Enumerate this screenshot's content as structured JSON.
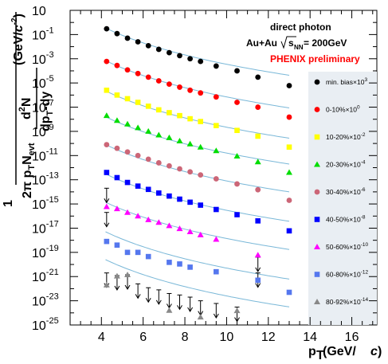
{
  "chart_data": {
    "type": "scatter",
    "xlim": [
      2.5,
      17.2
    ],
    "ylim_log10": [
      -25,
      1
    ],
    "y_scale": "log",
    "xlabel_main": "p",
    "xlabel_sub": "T",
    "xlabel_unit": "(GeV/",
    "xlabel_c": "c",
    "xlabel_close": ")",
    "ylabel": {
      "one": "1",
      "two_pi": "2π p",
      "t_sub": "T",
      "n_evt": "N",
      "evt_sub": "evt",
      "d2n": "d",
      "d2n_sup": "2",
      "d2n_n": "N",
      "dpt": "dp",
      "dpt_sub": "T",
      "dy": "-dy",
      "unit": "(GeV/",
      "unit_c": "c",
      "unit_close": ")",
      "unit_sup": "-2"
    },
    "x_ticks": [
      "4",
      "6",
      "8",
      "10",
      "12",
      "14",
      "16"
    ],
    "y_ticks": [
      {
        "base": "10",
        "exp": ""
      },
      {
        "base": "10",
        "exp": "-1"
      },
      {
        "base": "10",
        "exp": "-3"
      },
      {
        "base": "10",
        "exp": "-5"
      },
      {
        "base": "10",
        "exp": "-7"
      },
      {
        "base": "10",
        "exp": "-9"
      },
      {
        "base": "10",
        "exp": "-11"
      },
      {
        "base": "10",
        "exp": "-13"
      },
      {
        "base": "10",
        "exp": "-15"
      },
      {
        "base": "10",
        "exp": "-17"
      },
      {
        "base": "10",
        "exp": "-19"
      },
      {
        "base": "10",
        "exp": "-21"
      },
      {
        "base": "10",
        "exp": "-23"
      },
      {
        "base": "10",
        "exp": "-25"
      }
    ],
    "annotations": {
      "line1": "direct photon",
      "line2_a": "Au+Au ",
      "line2_s": "s",
      "line2_nn": "NN",
      "line2_b": " = 200GeV",
      "line3": "PHENIX preliminary"
    },
    "legend_placement": "right",
    "series": [
      {
        "name": "min. bias",
        "scale": "×10",
        "scale_exp": "3",
        "color": "#000000",
        "marker": "circle",
        "x": [
          4.25,
          4.75,
          5.25,
          5.75,
          6.25,
          6.75,
          7.25,
          7.75,
          8.25,
          8.75,
          9.5,
          10.5,
          11.5,
          13.0
        ],
        "y": [
          0.3,
          0.12,
          0.05,
          0.025,
          0.012,
          0.006,
          0.0032,
          0.0018,
          0.001,
          0.0006,
          0.00025,
          0.0001,
          3e-05,
          6e-06
        ],
        "fit": [
          4.2,
          13.0,
          0.35,
          -7.96
        ]
      },
      {
        "name": "0-10%",
        "scale": "×10",
        "scale_exp": "0",
        "color": "#ff0000",
        "marker": "circle",
        "x": [
          4.25,
          4.75,
          5.25,
          5.75,
          6.25,
          6.75,
          7.25,
          7.75,
          8.25,
          8.75,
          9.5,
          10.5,
          11.5,
          13.0
        ],
        "y": [
          0.0006,
          0.00028,
          0.00012,
          6e-05,
          3e-05,
          1.5e-05,
          8e-06,
          4.5e-06,
          2.5e-06,
          1.5e-06,
          7e-07,
          2.5e-07,
          1e-07,
          1.5e-08
        ],
        "fit": [
          4.2,
          13.0,
          0.0007,
          -7.96
        ]
      },
      {
        "name": "10-20%",
        "scale": "×10",
        "scale_exp": "-2",
        "color": "#ffff00",
        "marker": "square",
        "x": [
          4.25,
          4.75,
          5.25,
          5.75,
          6.25,
          6.75,
          7.25,
          7.75,
          8.25,
          8.75,
          9.5,
          10.5,
          11.5,
          13.0
        ],
        "y": [
          2.5e-06,
          1e-06,
          5e-07,
          2.5e-07,
          1.2e-07,
          6e-08,
          3.5e-08,
          2e-08,
          1.1e-08,
          6.5e-09,
          3e-09,
          1.2e-09,
          4e-10,
          5e-11
        ],
        "fit": [
          4.2,
          13.0,
          2.2e-06,
          -7.96
        ]
      },
      {
        "name": "20-30%",
        "scale": "×10",
        "scale_exp": "-4",
        "color": "#00dd00",
        "marker": "triangle",
        "x": [
          4.25,
          4.75,
          5.25,
          5.75,
          6.25,
          6.75,
          7.25,
          7.75,
          8.25,
          8.75,
          9.5,
          10.5,
          11.5,
          13.0
        ],
        "y": [
          2e-08,
          8e-09,
          4e-09,
          2e-09,
          1e-09,
          5e-10,
          3e-10,
          1.6e-10,
          9e-11,
          5e-11,
          2.5e-11,
          9e-12,
          3e-12,
          4e-13
        ],
        "fit": [
          4.2,
          13.0,
          1.6e-08,
          -7.96
        ]
      },
      {
        "name": "30-40%",
        "scale": "×10",
        "scale_exp": "-6",
        "color": "#cc6677",
        "marker": "circle",
        "x": [
          4.25,
          4.75,
          5.25,
          5.75,
          6.25,
          6.75,
          7.25,
          7.75,
          8.25,
          8.75,
          9.5,
          10.5,
          11.5,
          13.0
        ],
        "y": [
          8e-11,
          4e-11,
          2e-11,
          1e-11,
          5e-12,
          2.5e-12,
          1.4e-12,
          8e-13,
          4.5e-13,
          2.5e-13,
          1.2e-13,
          4.5e-14,
          1.5e-14,
          2e-15
        ],
        "fit": [
          4.2,
          13.0,
          8e-11,
          -7.96
        ]
      },
      {
        "name": "40-50%",
        "scale": "×10",
        "scale_exp": "-8",
        "color": "#0000ff",
        "marker": "square",
        "x": [
          4.25,
          4.75,
          5.25,
          5.75,
          6.25,
          6.75,
          7.25,
          7.75,
          8.25,
          8.75,
          9.5,
          10.5,
          11.5,
          13.0
        ],
        "y": [
          4e-13,
          1.5e-13,
          6e-14,
          3e-14,
          1.6e-14,
          8e-15,
          4.5e-15,
          2.5e-15,
          1.4e-15,
          8e-16,
          3.5e-16,
          1.3e-16,
          4e-17,
          6e-18
        ],
        "fit": [
          4.2,
          13.0,
          3e-13,
          -7.96
        ],
        "upper_limits": [
          [
            4.25,
            2e-14
          ]
        ]
      },
      {
        "name": "50-60%",
        "scale": "×10",
        "scale_exp": "-10",
        "color": "#ff00ff",
        "marker": "triangle",
        "x": [
          4.25,
          4.75,
          5.25,
          5.75,
          6.25,
          6.75,
          7.25,
          7.75,
          8.25,
          8.75,
          9.5,
          11.5
        ],
        "y": [
          6e-16,
          4e-16,
          2e-16,
          1e-16,
          5e-17,
          3e-17,
          1.6e-17,
          9e-18,
          5e-18,
          2.8e-18,
          1.2e-18,
          6e-20
        ],
        "fit": [
          4.2,
          13.0,
          1.4e-15,
          -7.96
        ],
        "upper_limits": [
          [
            4.25,
            2e-16
          ],
          [
            11.5,
            4e-20
          ]
        ]
      },
      {
        "name": "60-80%",
        "scale": "×10",
        "scale_exp": "-12",
        "color": "#5577ee",
        "marker": "square",
        "x": [
          4.25,
          4.75,
          5.25,
          5.75,
          6.25,
          7.25,
          7.75,
          8.25,
          9.5,
          11.5,
          13.0
        ],
        "y": [
          8e-19,
          4e-19,
          1e-19,
          1e-19,
          4.5e-20,
          1.5e-20,
          1.1e-20,
          6e-21,
          2.5e-21,
          5e-22,
          5e-23
        ],
        "fit": [
          4.2,
          13.0,
          5e-18,
          -7.96
        ],
        "upper_limits": [
          [
            11.5,
            2e-21
          ]
        ]
      },
      {
        "name": "80-92%",
        "scale": "×10",
        "scale_exp": "-14",
        "color": "#888888",
        "marker": "triangle",
        "x": [
          4.25,
          4.75,
          5.25,
          7.25,
          8.75,
          10.5
        ],
        "y": [
          2e-22,
          1.1e-21,
          1.4e-21,
          1.6e-24,
          4.5e-25,
          1.5e-24
        ],
        "fit": [
          4.2,
          13.0,
          2.5e-20,
          -7.96
        ],
        "upper_limits": [
          [
            4.25,
            2e-21
          ],
          [
            4.75,
            1.2e-21
          ],
          [
            5.25,
            1.4e-21
          ],
          [
            5.75,
            2.5e-22
          ],
          [
            6.25,
            1.2e-22
          ],
          [
            6.75,
            8e-23
          ],
          [
            7.25,
            4e-23
          ],
          [
            7.75,
            3e-23
          ],
          [
            8.25,
            2e-23
          ],
          [
            8.75,
            1e-23
          ],
          [
            9.5,
            6e-24
          ],
          [
            10.5,
            3e-24
          ]
        ]
      }
    ]
  }
}
